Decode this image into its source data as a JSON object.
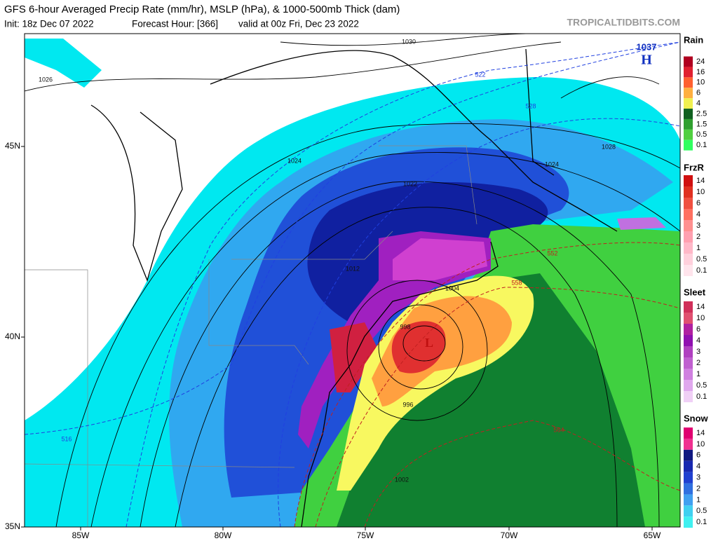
{
  "header": {
    "title": "GFS 6-hour Averaged Precip Rate (mm/hr), MSLP (hPa), & 1000-500mb Thick (dam)",
    "init": "Init: 18z Dec 07 2022",
    "forecast_hour": "Forecast Hour: [366]",
    "valid": "valid at 00z Fri, Dec 23 2022",
    "source": "TROPICALTIDBITS.COM"
  },
  "map": {
    "lon_labels": [
      "85W",
      "80W",
      "75W",
      "70W",
      "65W"
    ],
    "lat_labels": [
      "45N",
      "40N",
      "35N"
    ],
    "pressure_labels": [
      "1026",
      "1030",
      "1024",
      "1022",
      "1024",
      "1028",
      "1012",
      "1004",
      "998",
      "996",
      "1002"
    ],
    "thickness_labels": [
      "522",
      "528",
      "516",
      "552",
      "558",
      "564"
    ],
    "high": {
      "value": "1037",
      "symbol": "H"
    },
    "low": {
      "symbol": "L"
    }
  },
  "legend": [
    {
      "title": "Rain",
      "labels": [
        "24",
        "16",
        "10",
        "6",
        "4",
        "2.5",
        "1.5",
        "0.5",
        "0.1"
      ],
      "colors": [
        "#b00020",
        "#e02030",
        "#ff6030",
        "#ffb040",
        "#f0f050",
        "#106020",
        "#30a030",
        "#50d040",
        "#30ff60"
      ]
    },
    {
      "title": "FrzR",
      "labels": [
        "14",
        "10",
        "6",
        "4",
        "3",
        "2",
        "1",
        "0.5",
        "0.1"
      ],
      "colors": [
        "#d01010",
        "#e03020",
        "#f05040",
        "#ff7060",
        "#ff9090",
        "#ffa0b0",
        "#ffb8c8",
        "#ffd0dc",
        "#ffe4ec"
      ]
    },
    {
      "title": "Sleet",
      "labels": [
        "14",
        "10",
        "6",
        "4",
        "3",
        "2",
        "1",
        "0.5",
        "0.1"
      ],
      "colors": [
        "#d0305a",
        "#e05070",
        "#b020a0",
        "#9010b0",
        "#b040c0",
        "#c060d0",
        "#d080e0",
        "#e0a8ee",
        "#f0d0f6"
      ]
    },
    {
      "title": "Snow",
      "labels": [
        "14",
        "10",
        "6",
        "4",
        "3",
        "2",
        "1",
        "0.5",
        "0.1"
      ],
      "colors": [
        "#e00070",
        "#f03090",
        "#101880",
        "#1828b0",
        "#2040d0",
        "#3070e0",
        "#40a0f0",
        "#40d0f0",
        "#40f0f0"
      ]
    }
  ]
}
